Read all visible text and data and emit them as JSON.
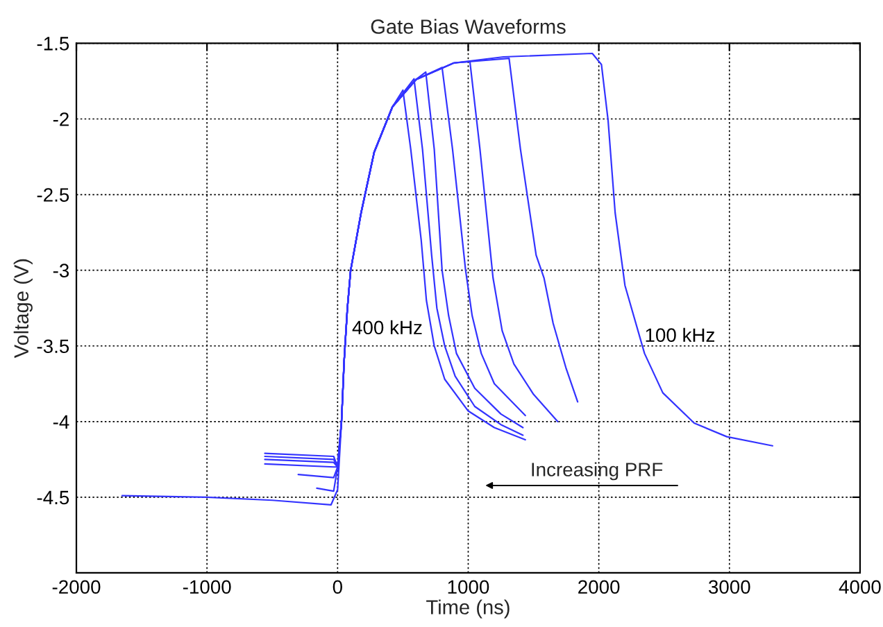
{
  "chart_data": {
    "type": "line",
    "title": "Gate Bias Waveforms",
    "xlabel": "Time (ns)",
    "ylabel": "Voltage (V)",
    "xlim": [
      -2000,
      4000
    ],
    "ylim": [
      -5,
      -1.5
    ],
    "xticks": [
      {
        "value": -2000,
        "label": "-2000"
      },
      {
        "value": -1000,
        "label": "-1000"
      },
      0,
      1000,
      2000,
      3000,
      4000
    ],
    "yticks": [
      {
        "value": -4.5,
        "label": "-4.5"
      },
      {
        "value": -4,
        "label": "-4"
      },
      {
        "value": -3.5,
        "label": "-3.5"
      },
      {
        "value": -3,
        "label": "-3"
      },
      {
        "value": -2.5,
        "label": "-2.5"
      },
      {
        "value": -2,
        "label": "-2"
      },
      {
        "value": -1.5,
        "label": "-1.5"
      }
    ],
    "grid": true,
    "legend": false,
    "marker": "none",
    "line_style": "solid",
    "series": [
      {
        "name": "400 kHz",
        "color": "#3333ff",
        "x": [
          -159,
          -30,
          0,
          30,
          50,
          75,
          100,
          180,
          280,
          420,
          500,
          560,
          640,
          680,
          740,
          820,
          1000,
          1200,
          1437
        ],
        "values": [
          -4.44,
          -4.46,
          -4.3,
          -4.0,
          -3.6,
          -3.25,
          -3.0,
          -2.62,
          -2.22,
          -1.92,
          -1.81,
          -2.2,
          -2.8,
          -3.2,
          -3.5,
          -3.72,
          -3.93,
          -4.04,
          -4.12
        ]
      },
      {
        "color": "#3333ff",
        "x": [
          -301,
          -30,
          0,
          30,
          50,
          75,
          100,
          180,
          280,
          420,
          585,
          650,
          720,
          760,
          820,
          900,
          1050,
          1250,
          1419
        ],
        "values": [
          -4.35,
          -4.37,
          -4.3,
          -4.0,
          -3.6,
          -3.25,
          -3.0,
          -2.62,
          -2.22,
          -1.92,
          -1.735,
          -2.2,
          -2.9,
          -3.25,
          -3.5,
          -3.7,
          -3.9,
          -4.02,
          -4.09
        ]
      },
      {
        "color": "#3333ff",
        "x": [
          -557,
          -30,
          0,
          30,
          50,
          75,
          100,
          180,
          280,
          420,
          600,
          675,
          740,
          800,
          850,
          910,
          1050,
          1250,
          1419
        ],
        "values": [
          -4.28,
          -4.3,
          -4.3,
          -4.0,
          -3.6,
          -3.25,
          -3.0,
          -2.62,
          -2.22,
          -1.92,
          -1.74,
          -1.69,
          -2.2,
          -3.0,
          -3.3,
          -3.55,
          -3.78,
          -3.95,
          -4.04
        ]
      },
      {
        "color": "#3333ff",
        "x": [
          -557,
          -30,
          0,
          30,
          50,
          75,
          100,
          180,
          280,
          420,
          600,
          800,
          880,
          980,
          1030,
          1100,
          1200,
          1437
        ],
        "values": [
          -4.25,
          -4.27,
          -4.3,
          -4.0,
          -3.6,
          -3.25,
          -3.0,
          -2.62,
          -2.22,
          -1.92,
          -1.74,
          -1.66,
          -2.2,
          -3.0,
          -3.3,
          -3.55,
          -3.75,
          -3.96
        ]
      },
      {
        "color": "#3333ff",
        "x": [
          -557,
          -30,
          0,
          30,
          50,
          75,
          100,
          180,
          280,
          420,
          600,
          890,
          1013,
          1090,
          1190,
          1260,
          1350,
          1500,
          1685
        ],
        "values": [
          -4.23,
          -4.25,
          -4.3,
          -4.0,
          -3.6,
          -3.25,
          -3.0,
          -2.62,
          -2.22,
          -1.92,
          -1.74,
          -1.63,
          -1.62,
          -2.2,
          -3.05,
          -3.4,
          -3.62,
          -3.82,
          -4.0
        ]
      },
      {
        "color": "#3333ff",
        "x": [
          -557,
          -30,
          0,
          30,
          50,
          75,
          100,
          180,
          280,
          420,
          600,
          890,
          1313,
          1400,
          1520,
          1580,
          1650,
          1750,
          1838
        ],
        "values": [
          -4.21,
          -4.23,
          -4.3,
          -4.0,
          -3.6,
          -3.25,
          -3.0,
          -2.62,
          -2.22,
          -1.92,
          -1.74,
          -1.63,
          -1.6,
          -2.2,
          -2.9,
          -3.05,
          -3.35,
          -3.65,
          -3.87
        ]
      },
      {
        "name": "100 kHz",
        "color": "#3333ff",
        "x": [
          -1650,
          -1000,
          -500,
          -50,
          0,
          30,
          50,
          75,
          100,
          180,
          280,
          420,
          600,
          890,
          1270,
          1950,
          2020,
          2071,
          2125,
          2200,
          2350,
          2490,
          2730,
          2980,
          3330
        ],
        "values": [
          -4.49,
          -4.5,
          -4.52,
          -4.55,
          -4.45,
          -4.0,
          -3.6,
          -3.25,
          -3.0,
          -2.62,
          -2.22,
          -1.92,
          -1.74,
          -1.63,
          -1.59,
          -1.567,
          -1.64,
          -2.01,
          -2.62,
          -3.1,
          -3.55,
          -3.81,
          -4.01,
          -4.1,
          -4.16
        ]
      }
    ],
    "annotations": [
      "Increasing PRF"
    ]
  }
}
